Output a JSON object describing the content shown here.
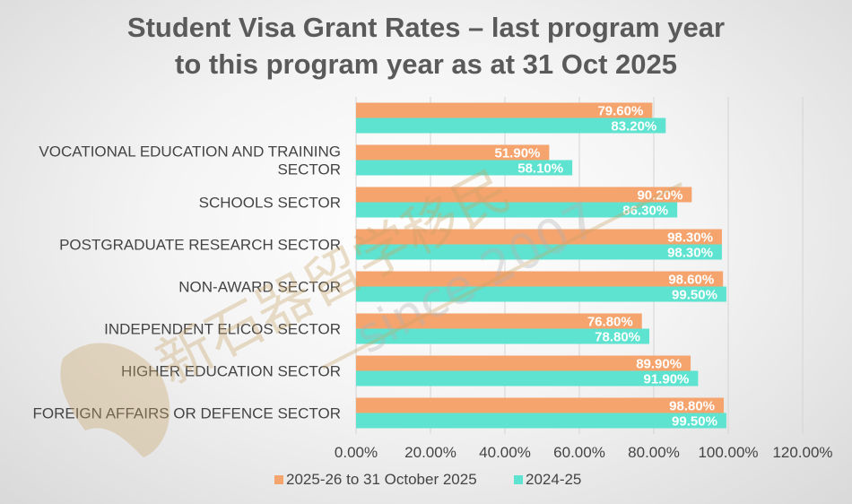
{
  "chart_data": {
    "type": "bar",
    "orientation": "horizontal",
    "title": "Student Visa Grant Rates – last program year to this program year as at 31 Oct 2025",
    "title_lines": [
      "Student Visa Grant Rates – last program year",
      "to this program year as at 31 Oct 2025"
    ],
    "categories": [
      "",
      "VOCATIONAL EDUCATION AND TRAINING SECTOR",
      "SCHOOLS SECTOR",
      "POSTGRADUATE RESEARCH SECTOR",
      "NON-AWARD SECTOR",
      "INDEPENDENT ELICOS SECTOR",
      "HIGHER EDUCATION SECTOR",
      "FOREIGN AFFAIRS OR DEFENCE SECTOR"
    ],
    "category_lines": [
      [],
      [
        "VOCATIONAL EDUCATION AND TRAINING",
        "SECTOR"
      ],
      [
        "SCHOOLS SECTOR"
      ],
      [
        "POSTGRADUATE RESEARCH SECTOR"
      ],
      [
        "NON-AWARD SECTOR"
      ],
      [
        "INDEPENDENT ELICOS SECTOR"
      ],
      [
        "HIGHER EDUCATION SECTOR"
      ],
      [
        "FOREIGN AFFAIRS OR DEFENCE SECTOR"
      ]
    ],
    "series": [
      {
        "name": "2025-26 to 31 October 2025",
        "color": "#F5A46E",
        "values": [
          79.6,
          51.9,
          90.2,
          98.3,
          98.6,
          76.8,
          89.9,
          98.8
        ],
        "labels": [
          "79.60%",
          "51.90%",
          "90.20%",
          "98.30%",
          "98.60%",
          "76.80%",
          "89.90%",
          "98.80%"
        ]
      },
      {
        "name": "2024-25",
        "color": "#5EE3D0",
        "values": [
          83.2,
          58.1,
          86.3,
          98.3,
          99.5,
          78.8,
          91.9,
          99.5
        ],
        "labels": [
          "83.20%",
          "58.10%",
          "86.30%",
          "98.30%",
          "99.50%",
          "78.80%",
          "91.90%",
          "99.50%"
        ]
      }
    ],
    "xlim": [
      0,
      120
    ],
    "xticks": [
      0,
      20,
      40,
      60,
      80,
      100,
      120
    ],
    "xtick_labels": [
      "0.00%",
      "20.00%",
      "40.00%",
      "60.00%",
      "80.00%",
      "100.00%",
      "120.00%"
    ],
    "grid": true,
    "legend": "bottom"
  },
  "watermark": {
    "text": "since 2007",
    "logo_text": "新石器留学移民"
  }
}
